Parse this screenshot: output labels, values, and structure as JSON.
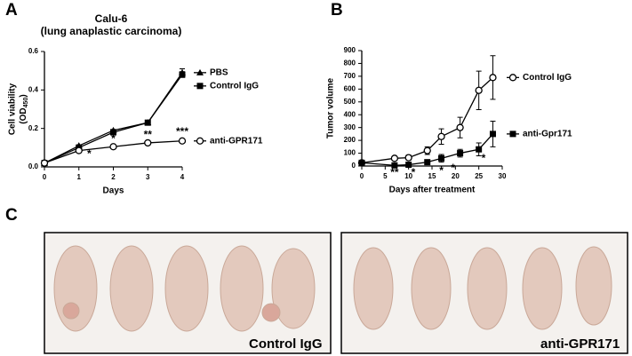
{
  "panel_labels": [
    "A",
    "B",
    "C"
  ],
  "chart_data": [
    {
      "type": "line",
      "title": "Calu-6",
      "subtitle": "(lung anaplastic carcinoma)",
      "xlabel": "Days",
      "ylabel": "Cell viability",
      "ylabel_unit": {
        "pre": "(OD",
        "sub": "450",
        "post": ")"
      },
      "x": [
        0,
        1,
        2,
        3,
        4
      ],
      "xlim": [
        0,
        4
      ],
      "xticks": [
        0,
        1,
        2,
        3,
        4
      ],
      "ylim": [
        0,
        0.6
      ],
      "yticks": [
        {
          "value": 0,
          "label": "0.0"
        },
        0.2,
        0.4,
        0.6
      ],
      "series": [
        {
          "name": "PBS",
          "color": "#000000",
          "marker": "triangle",
          "values": [
            0.02,
            0.11,
            0.19,
            0.23,
            0.49
          ],
          "errors": [
            0,
            0.005,
            0.005,
            0.01,
            0.02
          ]
        },
        {
          "name": "Control IgG",
          "color": "#000000",
          "marker": "square",
          "values": [
            0.02,
            0.1,
            0.18,
            0.23,
            0.48
          ],
          "errors": [
            0,
            0.005,
            0.005,
            0.01,
            0.015
          ]
        },
        {
          "name": "anti-GPR171",
          "color": "#000000",
          "marker": "circle-open",
          "values": [
            0.02,
            0.085,
            0.105,
            0.125,
            0.135
          ],
          "errors": [
            0,
            0.005,
            0.005,
            0.005,
            0.01
          ]
        }
      ],
      "annotations": [
        {
          "text": "*",
          "x": 1.3,
          "y": 0.065
        },
        {
          "text": "*",
          "x": 2,
          "y": 0.145
        },
        {
          "text": "**",
          "x": 3,
          "y": 0.165
        },
        {
          "text": "***",
          "x": 4,
          "y": 0.18
        }
      ]
    },
    {
      "type": "line",
      "xlabel": "Days after treatment",
      "ylabel": "Tumor volume",
      "x": [
        0,
        7,
        10,
        14,
        17,
        21,
        25,
        28
      ],
      "xlim": [
        0,
        30
      ],
      "xticks": [
        0,
        5,
        10,
        15,
        20,
        25,
        30
      ],
      "ylim": [
        0,
        900
      ],
      "yticks": [
        0,
        100,
        200,
        300,
        400,
        500,
        600,
        700,
        800,
        900
      ],
      "series": [
        {
          "name": "Control IgG",
          "color": "#000000",
          "marker": "circle-open",
          "values": [
            25,
            60,
            65,
            120,
            230,
            300,
            590,
            690
          ],
          "errors": [
            0,
            10,
            20,
            30,
            60,
            80,
            150,
            170
          ]
        },
        {
          "name": "anti-Gpr171",
          "color": "#000000",
          "marker": "square",
          "values": [
            25,
            5,
            10,
            30,
            60,
            100,
            130,
            250
          ],
          "errors": [
            0,
            5,
            5,
            15,
            30,
            30,
            50,
            100
          ]
        }
      ],
      "annotations": [
        {
          "text": "**",
          "x": 7,
          "y": -55
        },
        {
          "text": "*",
          "x": 11,
          "y": -55
        },
        {
          "text": "*",
          "x": 17,
          "y": -40
        },
        {
          "text": "*",
          "x": 19.5,
          "y": -20
        },
        {
          "text": "*",
          "x": 26,
          "y": 55
        }
      ]
    }
  ],
  "photos": [
    {
      "label": "Control IgG"
    },
    {
      "label": "anti-GPR171"
    }
  ]
}
